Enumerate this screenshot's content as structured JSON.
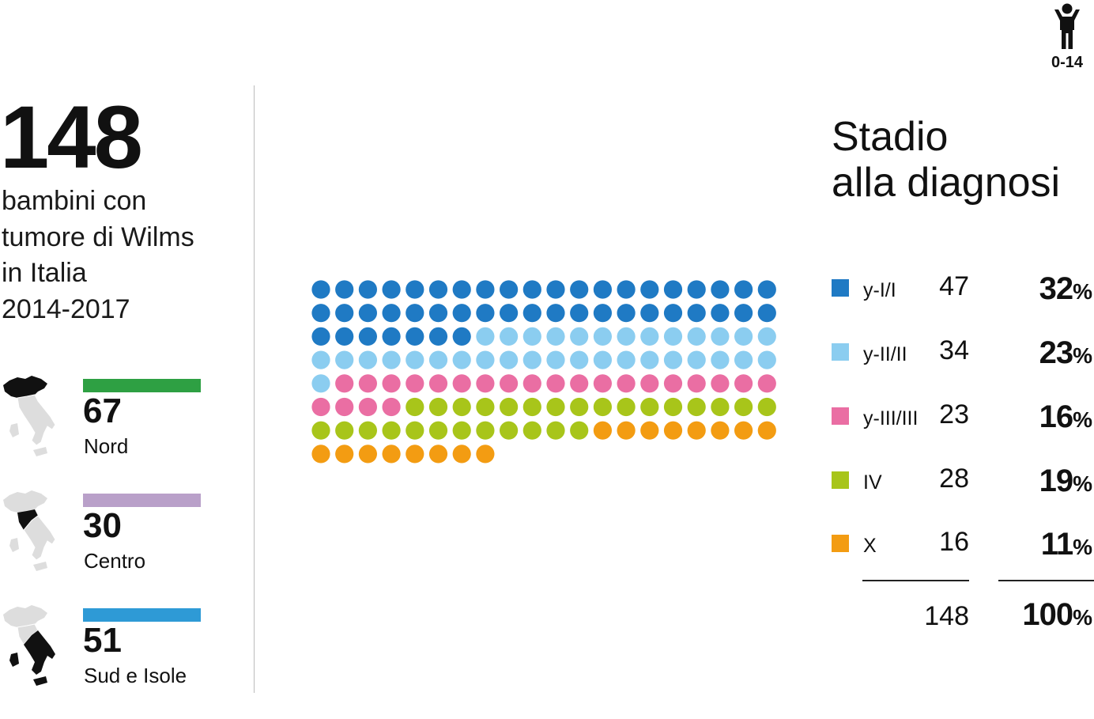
{
  "age_group": {
    "label": "0-14"
  },
  "headline": {
    "number": "148",
    "subtitle_lines": [
      "bambini con",
      "tumore di Wilms",
      "in Italia",
      "2014-2017"
    ]
  },
  "regions": [
    {
      "count": "67",
      "name": "Nord",
      "color": "#2ea043"
    },
    {
      "count": "30",
      "name": "Centro",
      "color": "#b9a0c9"
    },
    {
      "count": "51",
      "name": "Sud e Isole",
      "color": "#2e9ad6"
    }
  ],
  "legend": {
    "title_lines": [
      "Stadio",
      "alla diagnosi"
    ],
    "total_count": "148",
    "total_pct": "100",
    "pct_sign": "%"
  },
  "chart_data": {
    "type": "waffle",
    "units_per_row": 20,
    "total": 148,
    "series": [
      {
        "name": "y-I/I",
        "value": 47,
        "percent": "32",
        "color": "#1f7ac4"
      },
      {
        "name": "y-II/II",
        "value": 34,
        "percent": "23",
        "color": "#8bcdf0"
      },
      {
        "name": "y-III/III",
        "value": 23,
        "percent": "16",
        "color": "#ea6ea3"
      },
      {
        "name": "IV",
        "value": 28,
        "percent": "19",
        "color": "#a8c51a"
      },
      {
        "name": "X",
        "value": 16,
        "percent": "11",
        "color": "#f39c12"
      }
    ]
  }
}
